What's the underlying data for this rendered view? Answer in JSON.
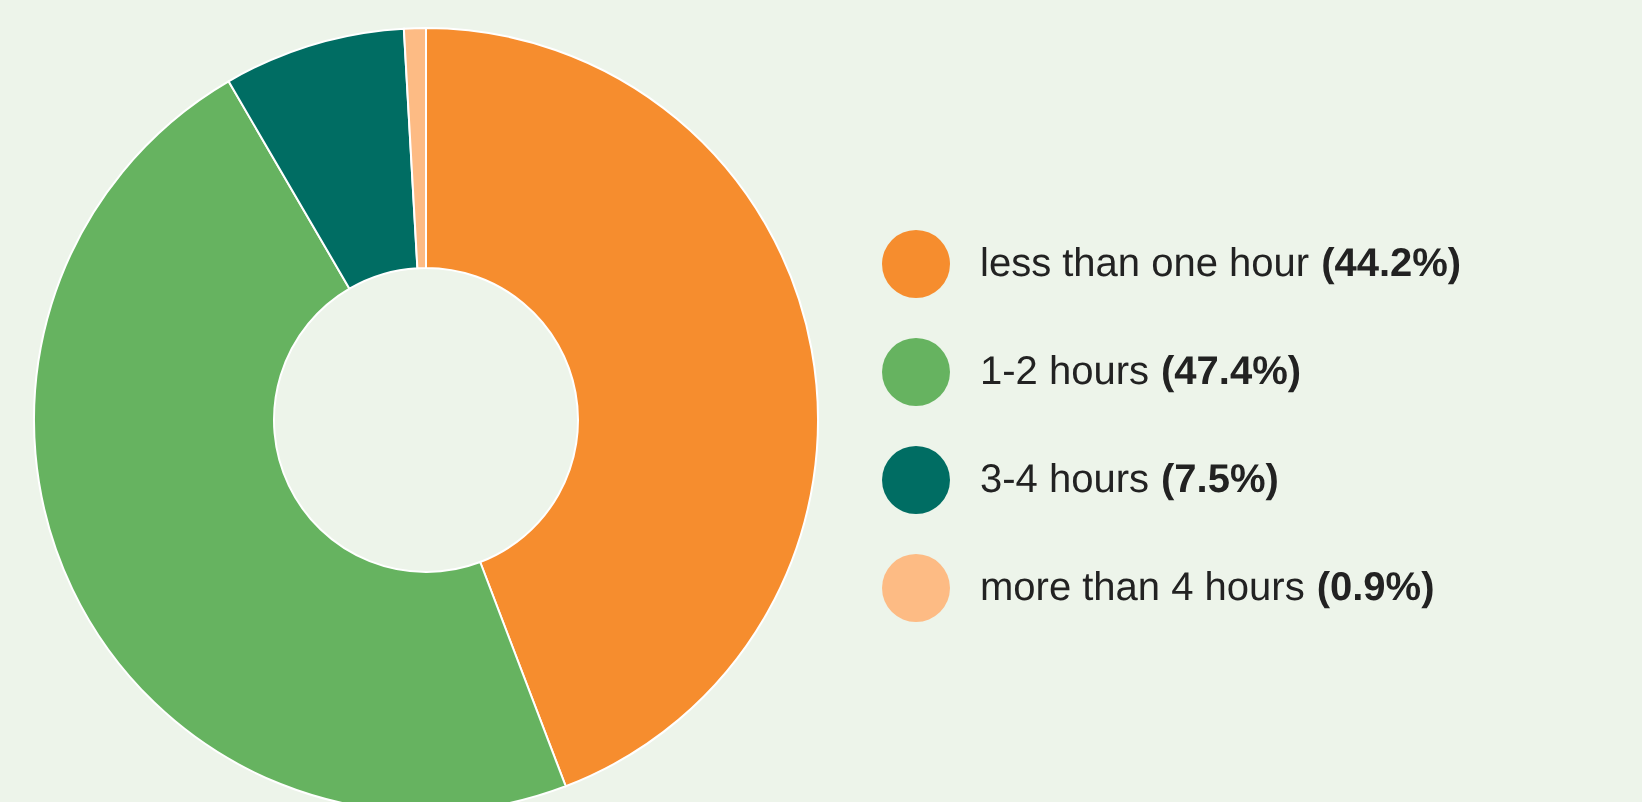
{
  "chart_data": {
    "type": "donut",
    "categories": [
      "less than one hour",
      "1-2 hours",
      "3-4 hours",
      "more than 4 hours"
    ],
    "values": [
      44.2,
      47.4,
      7.5,
      0.9
    ],
    "value_labels": [
      "(44.2%)",
      "(47.4%)",
      "(7.5%)",
      "(0.9%)"
    ],
    "colors": [
      "#f68d2e",
      "#66b360",
      "#006d63",
      "#fdbb84"
    ],
    "legend": "right"
  }
}
